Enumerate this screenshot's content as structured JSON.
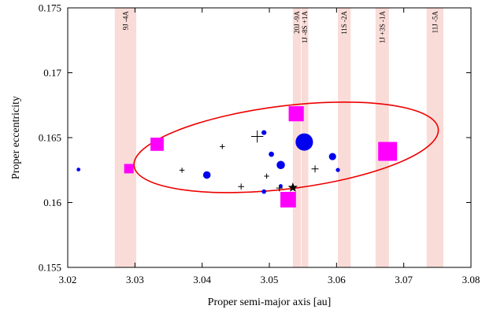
{
  "chart_data": {
    "type": "scatter",
    "xlabel": "Proper semi-major axis [au]",
    "ylabel": "Proper eccentricity",
    "xlim": [
      3.02,
      3.08
    ],
    "ylim": [
      0.155,
      0.175
    ],
    "xticks": [
      3.02,
      3.03,
      3.04,
      3.05,
      3.06,
      3.07,
      3.08
    ],
    "xtick_labels": [
      "3.02",
      "3.03",
      "3.04",
      "3.05",
      "3.06",
      "3.07",
      "3.08"
    ],
    "yticks": [
      0.155,
      0.16,
      0.165,
      0.17,
      0.175
    ],
    "ytick_labels": [
      "0.155",
      "0.16",
      "0.165",
      "0.17",
      "0.175"
    ],
    "grid": false,
    "colors": {
      "circle": "#0000ee",
      "square": "#ff00ff",
      "ellipse": "#ee0000",
      "resonance_band": "#f9dcd8",
      "plus": "#000000",
      "star": "#000000"
    },
    "resonances": [
      {
        "label": "9J -4A",
        "x_min": 3.027,
        "x_max": 3.0302
      },
      {
        "label": "20J -9A",
        "x_min": 3.0535,
        "x_max": 3.0547
      },
      {
        "label": "1J -8S +1A",
        "x_min": 3.0548,
        "x_max": 3.0558
      },
      {
        "label": "11S -2A",
        "x_min": 3.0602,
        "x_max": 3.0621
      },
      {
        "label": "1J +3S -1A",
        "x_min": 3.0658,
        "x_max": 3.0678
      },
      {
        "label": "11J -5A",
        "x_min": 3.0734,
        "x_max": 3.0759
      }
    ],
    "circles": [
      {
        "x": 3.0216,
        "y": 0.16254,
        "size": 1.0
      },
      {
        "x": 3.0407,
        "y": 0.16212,
        "size": 2.0
      },
      {
        "x": 3.0492,
        "y": 0.16539,
        "size": 1.3
      },
      {
        "x": 3.0503,
        "y": 0.16372,
        "size": 1.4
      },
      {
        "x": 3.0517,
        "y": 0.16289,
        "size": 2.2
      },
      {
        "x": 3.0552,
        "y": 0.16466,
        "size": 4.6
      },
      {
        "x": 3.0594,
        "y": 0.16354,
        "size": 1.9
      },
      {
        "x": 3.0602,
        "y": 0.16251,
        "size": 1.1
      },
      {
        "x": 3.0492,
        "y": 0.16084,
        "size": 1.2
      },
      {
        "x": 3.0517,
        "y": 0.16127,
        "size": 1.0
      }
    ],
    "squares": [
      {
        "x": 3.0291,
        "y": 0.16261,
        "size": 1.0
      },
      {
        "x": 3.0333,
        "y": 0.16449,
        "size": 1.8
      },
      {
        "x": 3.054,
        "y": 0.16684,
        "size": 2.2
      },
      {
        "x": 3.0528,
        "y": 0.16022,
        "size": 2.3
      },
      {
        "x": 3.0676,
        "y": 0.16394,
        "size": 3.0
      }
    ],
    "plus_markers": [
      {
        "x": 3.043,
        "y": 0.16431,
        "size": 1.0
      },
      {
        "x": 3.0482,
        "y": 0.16509,
        "size": 2.4
      },
      {
        "x": 3.037,
        "y": 0.16249,
        "size": 1.0
      },
      {
        "x": 3.0458,
        "y": 0.16123,
        "size": 1.2
      },
      {
        "x": 3.0496,
        "y": 0.16203,
        "size": 1.0
      },
      {
        "x": 3.0515,
        "y": 0.16111,
        "size": 1.3
      },
      {
        "x": 3.0568,
        "y": 0.16259,
        "size": 1.4
      }
    ],
    "star": {
      "x": 3.0535,
      "y": 0.16115
    },
    "ellipse": {
      "cx": 3.0525,
      "cy": 0.16425,
      "rx": 0.0228,
      "ry": 0.0032,
      "rotation_deg": -7
    }
  }
}
